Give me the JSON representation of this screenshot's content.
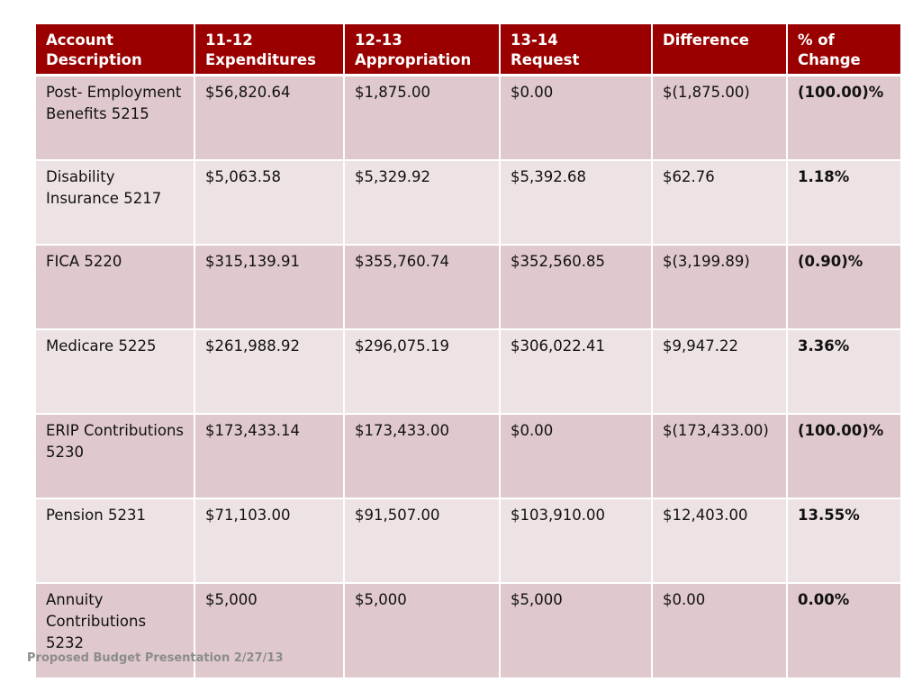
{
  "table": {
    "headers": [
      "Account\nDescription",
      "11-12\nExpenditures",
      "12-13\nAppropriation",
      "13-14\nRequest",
      "Difference",
      "% of\nChange"
    ],
    "rows": [
      [
        "Post-\nEmployment\nBenefits   5215",
        "$56,820.64",
        "$1,875.00",
        "$0.00",
        "$(1,875.00)",
        "(100.00)%"
      ],
      [
        "Disability\nInsurance\n5217",
        "$5,063.58",
        "$5,329.92",
        "$5,392.68",
        "$62.76",
        "1.18%"
      ],
      [
        "FICA\n5220",
        "$315,139.91",
        "$355,760.74",
        "$352,560.85",
        "$(3,199.89)",
        "(0.90)%"
      ],
      [
        "Medicare\n5225",
        "$261,988.92",
        "$296,075.19",
        "$306,022.41",
        "$9,947.22",
        "3.36%"
      ],
      [
        "ERIP\nContributions\n5230",
        "$173,433.14",
        "$173,433.00",
        "$0.00",
        "$(173,433.00)",
        "(100.00)%"
      ],
      [
        "Pension\n5231",
        "$71,103.00",
        "$91,507.00",
        "$103,910.00",
        "$12,403.00",
        "13.55%"
      ],
      [
        "Annuity\nContributions\n5232",
        "$5,000",
        "$5,000",
        "$5,000",
        "$0.00",
        "0.00%"
      ]
    ]
  },
  "footer": "Proposed Budget Presentation 2/27/13",
  "colors": {
    "header_bg": "#9b0000",
    "row_dark": "#e0c9cc",
    "row_light": "#eee3e4",
    "footer_text": "#8c8c8c"
  }
}
